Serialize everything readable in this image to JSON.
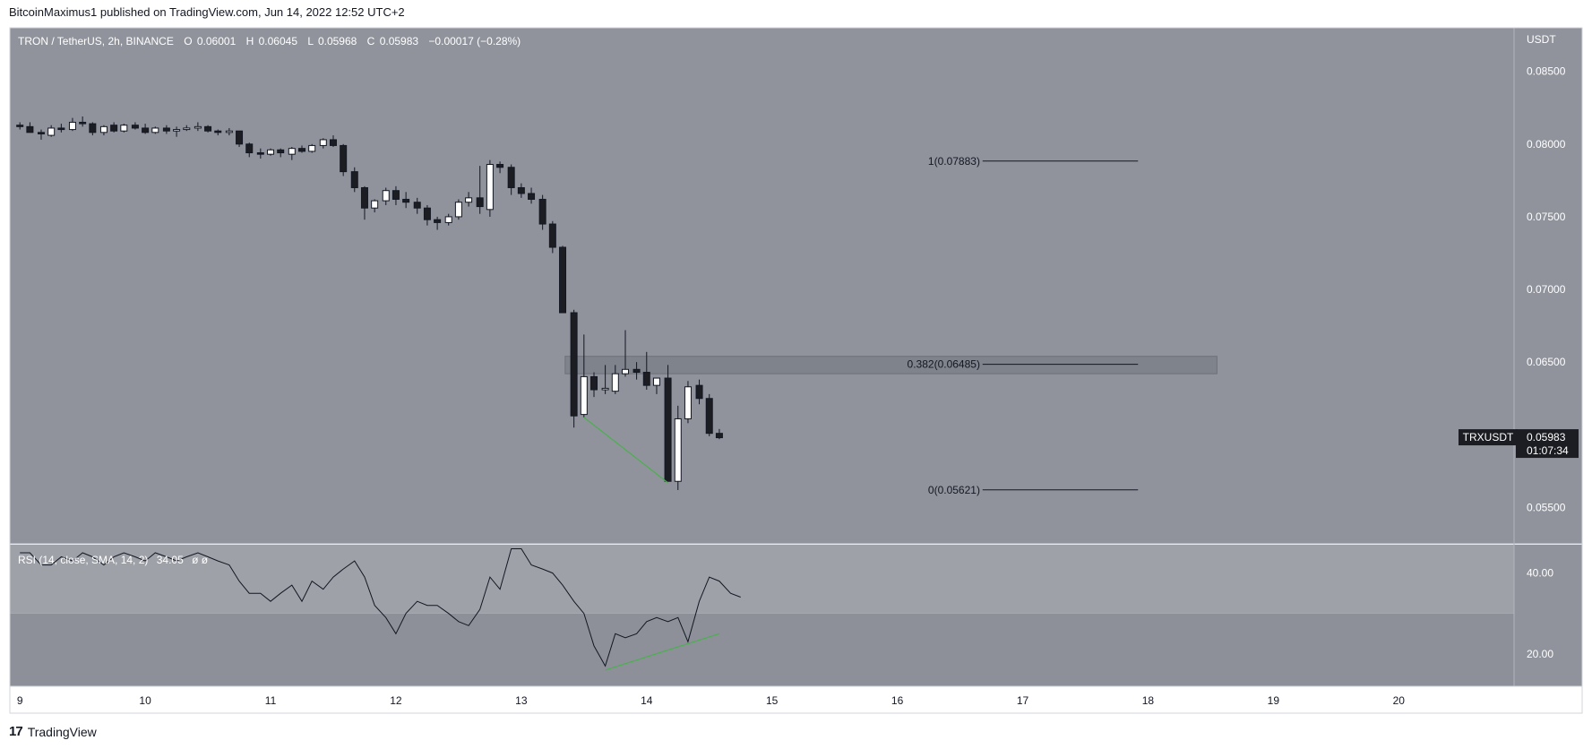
{
  "header": {
    "publisher_line": "BitcoinMaximus1 published on TradingView.com, Jun 14, 2022 12:52 UTC+2"
  },
  "footer": {
    "brand_mark": "17",
    "brand_name": "TradingView"
  },
  "colors": {
    "main_bg": "#90939c",
    "rsi_upper_bg": "#9fa1a9",
    "rsi_lower_bg": "#8d9098",
    "axis_bg": "#90939c",
    "up_candle": "#ffffff",
    "down_candle": "#1c1d22",
    "divergence": "#4caf50",
    "rsi_line": "#131722",
    "zone": "#7a7d85"
  },
  "chart_data": {
    "type": "candlestick",
    "symbol_legend": {
      "name": "TRON / TetherUS, 2h, BINANCE",
      "open_label": "O",
      "open": "0.06001",
      "high_label": "H",
      "high": "0.06045",
      "low_label": "L",
      "low": "0.05968",
      "close_label": "C",
      "close": "0.05983",
      "change": "−0.00017 (−0.28%)"
    },
    "y_axis": {
      "unit": "USDT",
      "range": [
        0.0525,
        0.088
      ],
      "ticks": [
        "0.08500",
        "0.08000",
        "0.07500",
        "0.07000",
        "0.06500",
        "0.06000",
        "0.05500"
      ]
    },
    "x_axis": {
      "range": [
        8.92,
        20.92
      ],
      "ticks": [
        {
          "x": 9,
          "label": "9"
        },
        {
          "x": 10,
          "label": "10"
        },
        {
          "x": 11,
          "label": "11"
        },
        {
          "x": 12,
          "label": "12"
        },
        {
          "x": 13,
          "label": "13"
        },
        {
          "x": 14,
          "label": "14"
        },
        {
          "x": 15,
          "label": "15"
        },
        {
          "x": 16,
          "label": "16"
        },
        {
          "x": 17,
          "label": "17"
        },
        {
          "x": 18,
          "label": "18"
        },
        {
          "x": 19,
          "label": "19"
        },
        {
          "x": 20,
          "label": "20"
        }
      ]
    },
    "candles": [
      {
        "t": 9.0,
        "o": 0.0813,
        "h": 0.0815,
        "l": 0.081,
        "c": 0.0812
      },
      {
        "t": 9.08,
        "o": 0.0812,
        "h": 0.0815,
        "l": 0.0808,
        "c": 0.0808
      },
      {
        "t": 9.17,
        "o": 0.0808,
        "h": 0.081,
        "l": 0.0803,
        "c": 0.0807
      },
      {
        "t": 9.25,
        "o": 0.0806,
        "h": 0.0813,
        "l": 0.0805,
        "c": 0.0811
      },
      {
        "t": 9.33,
        "o": 0.0811,
        "h": 0.0814,
        "l": 0.0808,
        "c": 0.081
      },
      {
        "t": 9.42,
        "o": 0.081,
        "h": 0.0818,
        "l": 0.0809,
        "c": 0.0815
      },
      {
        "t": 9.5,
        "o": 0.0815,
        "h": 0.0819,
        "l": 0.0812,
        "c": 0.0814
      },
      {
        "t": 9.58,
        "o": 0.0814,
        "h": 0.0815,
        "l": 0.0806,
        "c": 0.0808
      },
      {
        "t": 9.67,
        "o": 0.0808,
        "h": 0.0813,
        "l": 0.0806,
        "c": 0.0812
      },
      {
        "t": 9.75,
        "o": 0.0813,
        "h": 0.0815,
        "l": 0.0808,
        "c": 0.0809
      },
      {
        "t": 9.83,
        "o": 0.0809,
        "h": 0.0814,
        "l": 0.0808,
        "c": 0.0813
      },
      {
        "t": 9.92,
        "o": 0.0813,
        "h": 0.0815,
        "l": 0.081,
        "c": 0.0811
      },
      {
        "t": 10.0,
        "o": 0.0811,
        "h": 0.0814,
        "l": 0.0807,
        "c": 0.0808
      },
      {
        "t": 10.08,
        "o": 0.0808,
        "h": 0.0812,
        "l": 0.0807,
        "c": 0.0811
      },
      {
        "t": 10.17,
        "o": 0.0811,
        "h": 0.0813,
        "l": 0.0807,
        "c": 0.0809
      },
      {
        "t": 10.25,
        "o": 0.0809,
        "h": 0.0812,
        "l": 0.0805,
        "c": 0.081
      },
      {
        "t": 10.33,
        "o": 0.081,
        "h": 0.0813,
        "l": 0.0809,
        "c": 0.0811
      },
      {
        "t": 10.42,
        "o": 0.0811,
        "h": 0.0815,
        "l": 0.0809,
        "c": 0.0812
      },
      {
        "t": 10.5,
        "o": 0.0812,
        "h": 0.0813,
        "l": 0.0808,
        "c": 0.0809
      },
      {
        "t": 10.58,
        "o": 0.0809,
        "h": 0.081,
        "l": 0.0806,
        "c": 0.0808
      },
      {
        "t": 10.67,
        "o": 0.0808,
        "h": 0.0811,
        "l": 0.0806,
        "c": 0.0809
      },
      {
        "t": 10.75,
        "o": 0.0809,
        "h": 0.0809,
        "l": 0.0798,
        "c": 0.08
      },
      {
        "t": 10.83,
        "o": 0.08,
        "h": 0.0801,
        "l": 0.0791,
        "c": 0.0794
      },
      {
        "t": 10.92,
        "o": 0.0794,
        "h": 0.0797,
        "l": 0.079,
        "c": 0.0793
      },
      {
        "t": 11.0,
        "o": 0.0793,
        "h": 0.0797,
        "l": 0.0792,
        "c": 0.0796
      },
      {
        "t": 11.08,
        "o": 0.0796,
        "h": 0.0797,
        "l": 0.0791,
        "c": 0.0794
      },
      {
        "t": 11.17,
        "o": 0.0793,
        "h": 0.0798,
        "l": 0.0789,
        "c": 0.0797
      },
      {
        "t": 11.25,
        "o": 0.0797,
        "h": 0.0799,
        "l": 0.0794,
        "c": 0.0795
      },
      {
        "t": 11.33,
        "o": 0.0795,
        "h": 0.08,
        "l": 0.0794,
        "c": 0.0799
      },
      {
        "t": 11.42,
        "o": 0.0799,
        "h": 0.0804,
        "l": 0.0797,
        "c": 0.0803
      },
      {
        "t": 11.5,
        "o": 0.0803,
        "h": 0.0806,
        "l": 0.0798,
        "c": 0.0799
      },
      {
        "t": 11.58,
        "o": 0.0799,
        "h": 0.08,
        "l": 0.0778,
        "c": 0.0781
      },
      {
        "t": 11.67,
        "o": 0.0781,
        "h": 0.0784,
        "l": 0.0767,
        "c": 0.077
      },
      {
        "t": 11.75,
        "o": 0.077,
        "h": 0.0771,
        "l": 0.0748,
        "c": 0.0756
      },
      {
        "t": 11.83,
        "o": 0.0756,
        "h": 0.0762,
        "l": 0.0753,
        "c": 0.0761
      },
      {
        "t": 11.92,
        "o": 0.0761,
        "h": 0.077,
        "l": 0.0758,
        "c": 0.0768
      },
      {
        "t": 12.0,
        "o": 0.0768,
        "h": 0.0771,
        "l": 0.0758,
        "c": 0.0762
      },
      {
        "t": 12.08,
        "o": 0.0762,
        "h": 0.0767,
        "l": 0.0756,
        "c": 0.076
      },
      {
        "t": 12.17,
        "o": 0.076,
        "h": 0.0763,
        "l": 0.0752,
        "c": 0.0756
      },
      {
        "t": 12.25,
        "o": 0.0756,
        "h": 0.0758,
        "l": 0.0744,
        "c": 0.0748
      },
      {
        "t": 12.33,
        "o": 0.0748,
        "h": 0.075,
        "l": 0.0741,
        "c": 0.0746
      },
      {
        "t": 12.42,
        "o": 0.0746,
        "h": 0.0752,
        "l": 0.0744,
        "c": 0.075
      },
      {
        "t": 12.5,
        "o": 0.075,
        "h": 0.0762,
        "l": 0.0748,
        "c": 0.076
      },
      {
        "t": 12.58,
        "o": 0.076,
        "h": 0.0767,
        "l": 0.0757,
        "c": 0.0763
      },
      {
        "t": 12.67,
        "o": 0.0763,
        "h": 0.0785,
        "l": 0.0752,
        "c": 0.0757
      },
      {
        "t": 12.75,
        "o": 0.0755,
        "h": 0.0789,
        "l": 0.075,
        "c": 0.0786
      },
      {
        "t": 12.83,
        "o": 0.0786,
        "h": 0.0788,
        "l": 0.078,
        "c": 0.0784
      },
      {
        "t": 12.92,
        "o": 0.0784,
        "h": 0.0786,
        "l": 0.0765,
        "c": 0.077
      },
      {
        "t": 13.0,
        "o": 0.077,
        "h": 0.0773,
        "l": 0.0763,
        "c": 0.0766
      },
      {
        "t": 13.08,
        "o": 0.0766,
        "h": 0.077,
        "l": 0.0759,
        "c": 0.0762
      },
      {
        "t": 13.17,
        "o": 0.0762,
        "h": 0.0765,
        "l": 0.0741,
        "c": 0.0745
      },
      {
        "t": 13.25,
        "o": 0.0745,
        "h": 0.0747,
        "l": 0.0725,
        "c": 0.0729
      },
      {
        "t": 13.33,
        "o": 0.0729,
        "h": 0.073,
        "l": 0.0684,
        "c": 0.0684
      },
      {
        "t": 13.42,
        "o": 0.0684,
        "h": 0.0686,
        "l": 0.0605,
        "c": 0.0613
      },
      {
        "t": 13.5,
        "o": 0.0614,
        "h": 0.0669,
        "l": 0.0612,
        "c": 0.064
      },
      {
        "t": 13.58,
        "o": 0.064,
        "h": 0.0643,
        "l": 0.0626,
        "c": 0.0631
      },
      {
        "t": 13.67,
        "o": 0.0631,
        "h": 0.0648,
        "l": 0.0628,
        "c": 0.0632
      },
      {
        "t": 13.75,
        "o": 0.063,
        "h": 0.0648,
        "l": 0.0628,
        "c": 0.0642
      },
      {
        "t": 13.83,
        "o": 0.0642,
        "h": 0.0672,
        "l": 0.064,
        "c": 0.0645
      },
      {
        "t": 13.92,
        "o": 0.0645,
        "h": 0.065,
        "l": 0.0638,
        "c": 0.0643
      },
      {
        "t": 14.0,
        "o": 0.0643,
        "h": 0.0657,
        "l": 0.0631,
        "c": 0.0634
      },
      {
        "t": 14.08,
        "o": 0.0634,
        "h": 0.0639,
        "l": 0.0628,
        "c": 0.0639
      },
      {
        "t": 14.17,
        "o": 0.0639,
        "h": 0.0648,
        "l": 0.0568,
        "c": 0.0568
      },
      {
        "t": 14.25,
        "o": 0.0568,
        "h": 0.062,
        "l": 0.0562,
        "c": 0.0611
      },
      {
        "t": 14.33,
        "o": 0.0611,
        "h": 0.0637,
        "l": 0.0608,
        "c": 0.0633
      },
      {
        "t": 14.42,
        "o": 0.0634,
        "h": 0.0638,
        "l": 0.0621,
        "c": 0.0625
      },
      {
        "t": 14.5,
        "o": 0.0625,
        "h": 0.0628,
        "l": 0.0599,
        "c": 0.0601
      },
      {
        "t": 14.58,
        "o": 0.0601,
        "h": 0.0604,
        "l": 0.0597,
        "c": 0.0598
      }
    ],
    "fib_levels": [
      {
        "label": "1(0.07883)",
        "value": 0.07883
      },
      {
        "label": "0.382(0.06485)",
        "value": 0.06485
      },
      {
        "label": "0(0.05621)",
        "value": 0.05621
      }
    ],
    "zone": {
      "from": 13.35,
      "to": 18.55,
      "low": 0.0642,
      "high": 0.0654
    },
    "price_divergence": {
      "from": {
        "t": 13.5,
        "v": 0.0612
      },
      "to": {
        "t": 14.17,
        "v": 0.0567
      }
    },
    "price_label": {
      "symbol": "TRXUSDT",
      "value": "0.05983",
      "countdown": "01:07:34",
      "level": 0.05983
    },
    "rsi": {
      "legend": "RSI (14, close, SMA, 14, 2)",
      "value": "34.05",
      "extra": "ø  ø",
      "range": [
        12,
        47
      ],
      "band_level": 30,
      "ticks": [
        "40.00",
        "20.00"
      ],
      "points": [
        [
          9.0,
          45
        ],
        [
          9.08,
          45
        ],
        [
          9.17,
          42
        ],
        [
          9.25,
          42
        ],
        [
          9.33,
          44
        ],
        [
          9.42,
          43
        ],
        [
          9.5,
          45
        ],
        [
          9.58,
          44
        ],
        [
          9.67,
          42
        ],
        [
          9.75,
          44
        ],
        [
          9.83,
          45
        ],
        [
          9.92,
          44
        ],
        [
          10.0,
          43
        ],
        [
          10.08,
          45
        ],
        [
          10.17,
          44
        ],
        [
          10.25,
          43
        ],
        [
          10.33,
          44
        ],
        [
          10.42,
          45
        ],
        [
          10.5,
          44
        ],
        [
          10.58,
          43
        ],
        [
          10.67,
          42
        ],
        [
          10.75,
          38
        ],
        [
          10.83,
          35
        ],
        [
          10.92,
          35
        ],
        [
          11.0,
          33
        ],
        [
          11.08,
          35
        ],
        [
          11.17,
          37
        ],
        [
          11.25,
          33
        ],
        [
          11.33,
          38
        ],
        [
          11.42,
          36
        ],
        [
          11.5,
          39
        ],
        [
          11.58,
          41
        ],
        [
          11.67,
          43
        ],
        [
          11.75,
          39
        ],
        [
          11.83,
          32
        ],
        [
          11.92,
          29
        ],
        [
          12.0,
          25
        ],
        [
          12.08,
          30
        ],
        [
          12.17,
          33
        ],
        [
          12.25,
          32
        ],
        [
          12.33,
          32
        ],
        [
          12.42,
          30
        ],
        [
          12.5,
          28
        ],
        [
          12.58,
          27
        ],
        [
          12.67,
          31
        ],
        [
          12.75,
          39
        ],
        [
          12.83,
          36
        ],
        [
          12.92,
          46
        ],
        [
          13.0,
          46
        ],
        [
          13.08,
          42
        ],
        [
          13.17,
          41
        ],
        [
          13.25,
          40
        ],
        [
          13.33,
          37
        ],
        [
          13.42,
          33
        ],
        [
          13.5,
          30
        ],
        [
          13.58,
          22
        ],
        [
          13.67,
          17
        ],
        [
          13.75,
          25
        ],
        [
          13.83,
          24
        ],
        [
          13.92,
          25
        ],
        [
          14.0,
          28
        ],
        [
          14.08,
          29
        ],
        [
          14.17,
          28
        ],
        [
          14.25,
          29
        ],
        [
          14.33,
          23
        ],
        [
          14.42,
          33
        ],
        [
          14.5,
          39
        ],
        [
          14.58,
          38
        ],
        [
          14.67,
          35
        ],
        [
          14.75,
          34.05
        ]
      ],
      "divergence": {
        "from": [
          13.67,
          16
        ],
        "to": [
          14.58,
          25
        ]
      }
    }
  }
}
